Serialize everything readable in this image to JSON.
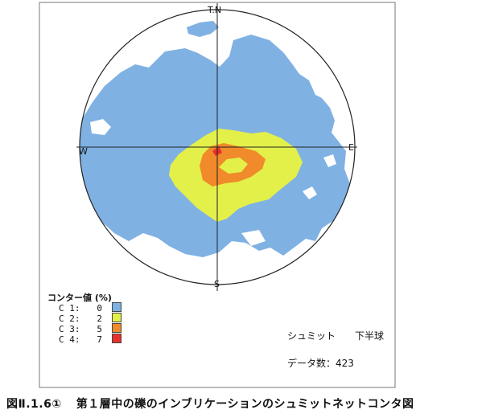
{
  "directions": {
    "north": "T.N",
    "south": "S",
    "east": "E",
    "west": "W"
  },
  "legend": {
    "title": "コンター値 (%)",
    "items": [
      {
        "code": "C 1:",
        "value": "0",
        "color": "#7fb1e3"
      },
      {
        "code": "C 2:",
        "value": "2",
        "color": "#e3f04a"
      },
      {
        "code": "C 3:",
        "value": "5",
        "color": "#f08a2a"
      },
      {
        "code": "C 4:",
        "value": "7",
        "color": "#e8302a"
      }
    ]
  },
  "info": {
    "net": "シュミット",
    "hemisphere": "下半球",
    "data_count": "データ数：423"
  },
  "caption": {
    "number": "図Ⅱ.1.6①",
    "title": "第１層中の礫のインブリケーションのシュミットネットコンタ図"
  }
}
